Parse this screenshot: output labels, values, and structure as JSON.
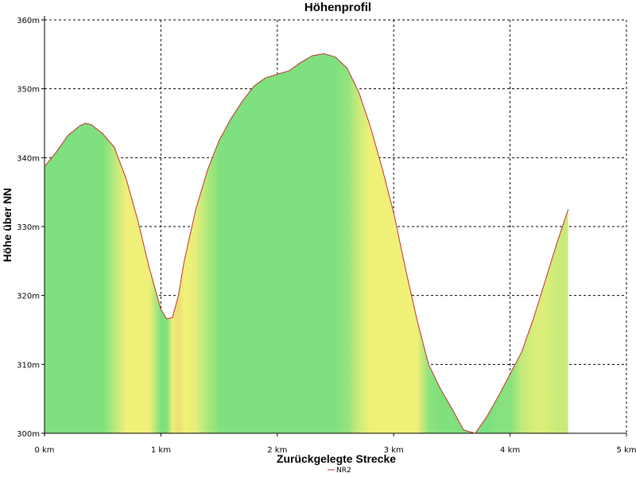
{
  "chart_data": {
    "type": "area",
    "title": "Höhenprofil",
    "xlabel": "Zurückgelegte Strecke",
    "ylabel": "Höhe über NN",
    "xlim": [
      0,
      5
    ],
    "ylim": [
      300,
      360
    ],
    "x_ticks": [
      {
        "value": 0,
        "label": "0 km"
      },
      {
        "value": 1,
        "label": "1 km"
      },
      {
        "value": 2,
        "label": "2 km"
      },
      {
        "value": 3,
        "label": "3 km"
      },
      {
        "value": 4,
        "label": "4 km"
      },
      {
        "value": 5,
        "label": "5 km"
      }
    ],
    "y_ticks": [
      {
        "value": 300,
        "label": "300m"
      },
      {
        "value": 310,
        "label": "310m"
      },
      {
        "value": 320,
        "label": "320m"
      },
      {
        "value": 330,
        "label": "330m"
      },
      {
        "value": 340,
        "label": "340m"
      },
      {
        "value": 350,
        "label": "350m"
      },
      {
        "value": 360,
        "label": "360m"
      }
    ],
    "grid": true,
    "legend": {
      "position": "bottom-center"
    },
    "series": [
      {
        "name": "NR2",
        "color": "#c03030",
        "x": [
          0,
          0.1,
          0.2,
          0.3,
          0.35,
          0.4,
          0.5,
          0.6,
          0.7,
          0.8,
          0.9,
          1.0,
          1.05,
          1.1,
          1.15,
          1.2,
          1.3,
          1.4,
          1.5,
          1.6,
          1.7,
          1.8,
          1.9,
          2.0,
          2.1,
          2.2,
          2.3,
          2.4,
          2.5,
          2.6,
          2.7,
          2.8,
          2.9,
          3.0,
          3.1,
          3.2,
          3.3,
          3.4,
          3.5,
          3.6,
          3.7,
          3.8,
          3.9,
          4.0,
          4.1,
          4.2,
          4.3,
          4.4,
          4.5
        ],
        "values": [
          338.7,
          340.8,
          343.2,
          344.6,
          345.0,
          344.8,
          343.5,
          341.5,
          337.0,
          331.0,
          324.0,
          318.0,
          316.6,
          316.8,
          320.0,
          325.0,
          332.5,
          338.2,
          342.5,
          345.6,
          348.2,
          350.4,
          351.6,
          352.1,
          352.6,
          353.8,
          354.8,
          355.1,
          354.6,
          353.0,
          349.5,
          344.5,
          338.5,
          332.0,
          324.0,
          316.5,
          310.0,
          306.5,
          303.6,
          300.5,
          300.0,
          302.4,
          305.4,
          308.6,
          311.8,
          316.6,
          322.0,
          327.5,
          332.5
        ]
      }
    ]
  }
}
